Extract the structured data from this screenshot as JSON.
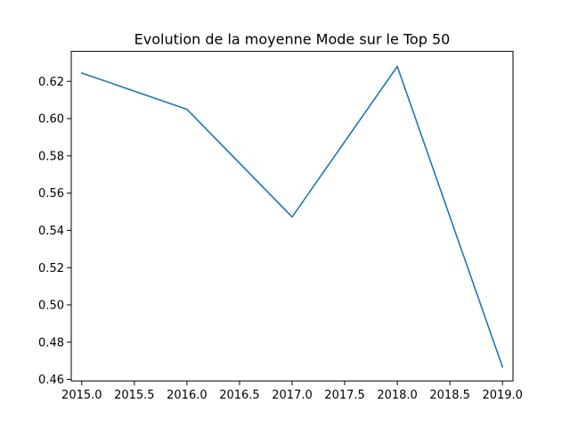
{
  "chart_data": {
    "type": "line",
    "title": "Evolution de la moyenne Mode sur le Top 50",
    "xlabel": "",
    "ylabel": "",
    "x": [
      2015.0,
      2016.0,
      2017.0,
      2018.0,
      2019.0
    ],
    "series": [
      {
        "values": [
          0.6245,
          0.605,
          0.5472,
          0.628,
          0.4667
        ],
        "color": "#1f77b4"
      }
    ],
    "xlim": [
      2014.9,
      2019.1
    ],
    "ylim": [
      0.4592,
      0.6361
    ],
    "xticks": [
      {
        "value": 2015.0,
        "label": "2015.0"
      },
      {
        "value": 2015.5,
        "label": "2015.5"
      },
      {
        "value": 2016.0,
        "label": "2016.0"
      },
      {
        "value": 2016.5,
        "label": "2016.5"
      },
      {
        "value": 2017.0,
        "label": "2017.0"
      },
      {
        "value": 2017.5,
        "label": "2017.5"
      },
      {
        "value": 2018.0,
        "label": "2018.0"
      },
      {
        "value": 2018.5,
        "label": "2018.5"
      },
      {
        "value": 2019.0,
        "label": "2019.0"
      }
    ],
    "yticks": [
      {
        "value": 0.46,
        "label": "0.46"
      },
      {
        "value": 0.48,
        "label": "0.48"
      },
      {
        "value": 0.5,
        "label": "0.50"
      },
      {
        "value": 0.52,
        "label": "0.52"
      },
      {
        "value": 0.54,
        "label": "0.54"
      },
      {
        "value": 0.56,
        "label": "0.56"
      },
      {
        "value": 0.58,
        "label": "0.58"
      },
      {
        "value": 0.6,
        "label": "0.60"
      },
      {
        "value": 0.62,
        "label": "0.62"
      }
    ],
    "grid": false,
    "legend": "none"
  }
}
